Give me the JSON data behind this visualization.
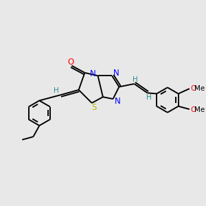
{
  "background_color": "#e8e8e8",
  "bond_color": "#000000",
  "atom_colors": {
    "O": "#ff0000",
    "N": "#0000ff",
    "S": "#b8b800",
    "H": "#2e8b8b",
    "C": "#000000",
    "OMe_O": "#ff0000",
    "OMe_text": "#000000"
  },
  "figsize": [
    3.0,
    3.0
  ],
  "dpi": 100
}
